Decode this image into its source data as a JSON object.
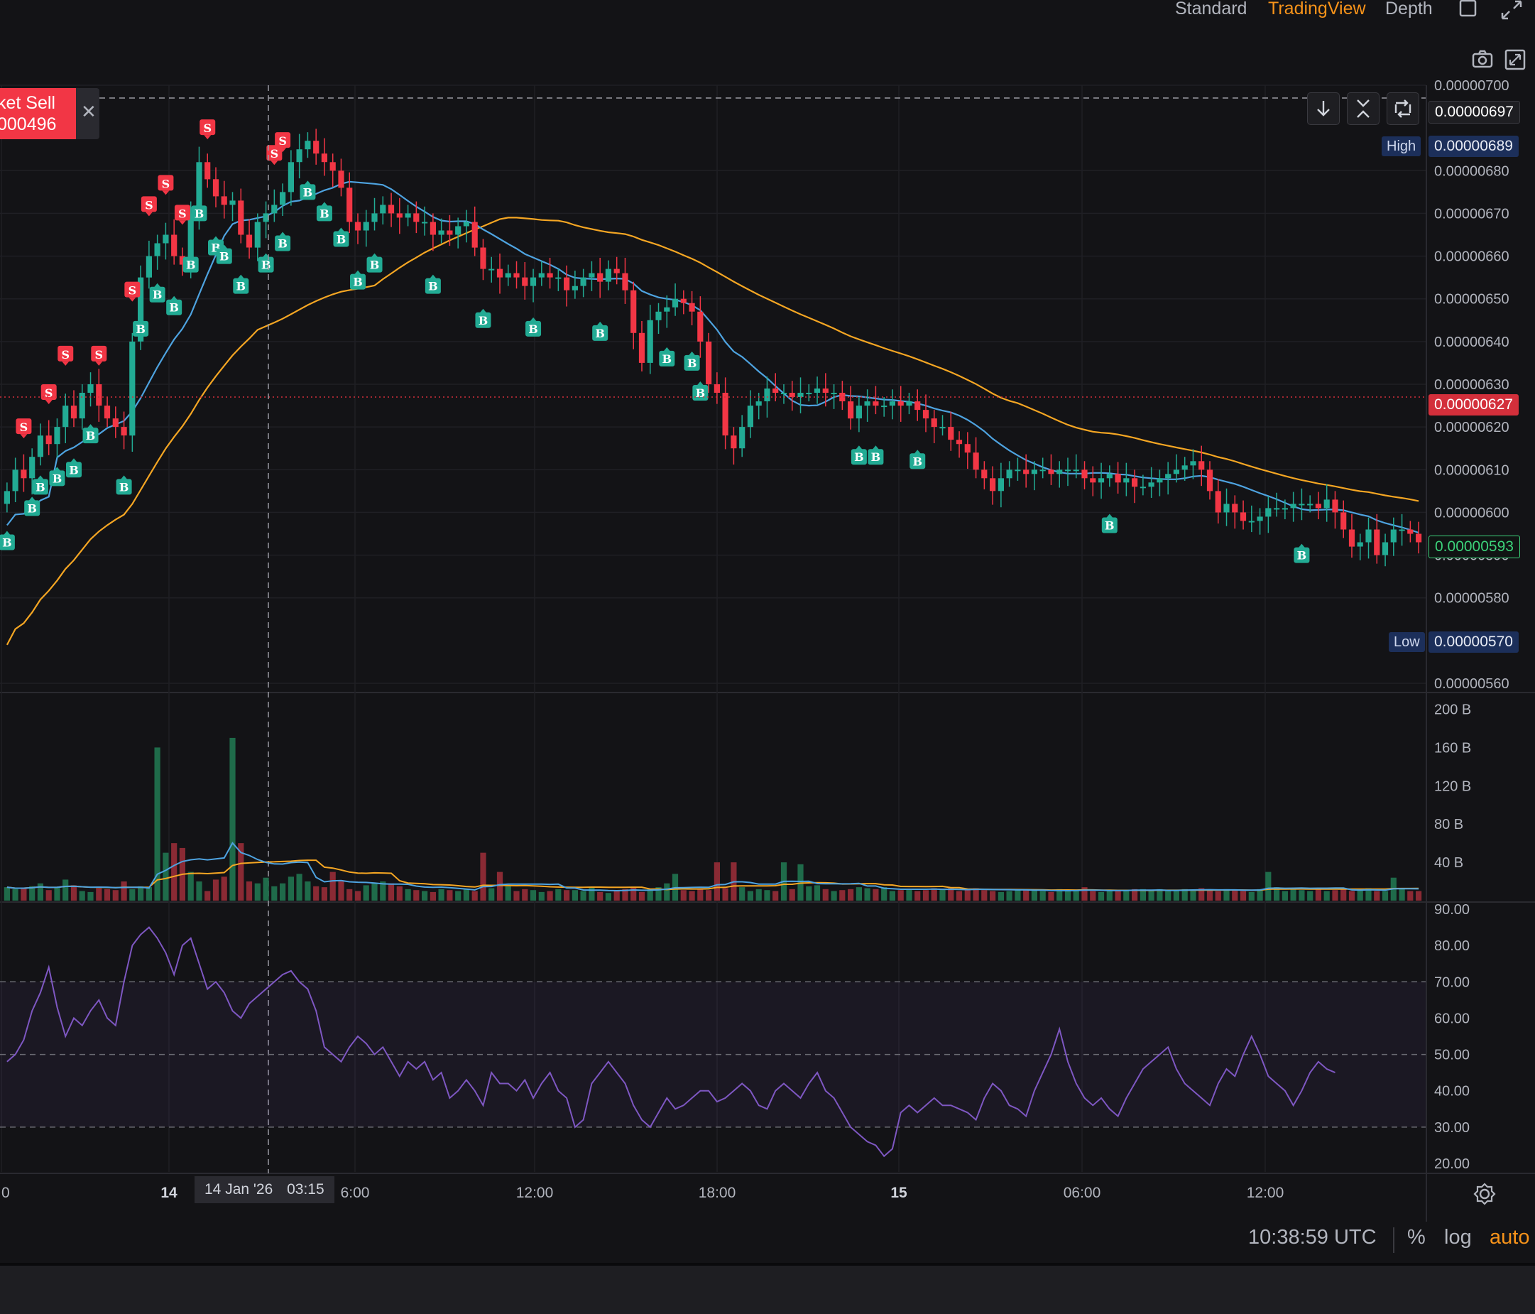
{
  "toolbar": {
    "views": [
      "Standard",
      "TradingView",
      "Depth"
    ],
    "active_view": "TradingView"
  },
  "tooltip": {
    "line1": "ket Sell",
    "line2": "000496"
  },
  "price_tags": {
    "crosshair": "0.00000697",
    "high_label": "High",
    "high": "0.00000689",
    "last": "0.00000627",
    "current": "0.00000593",
    "low_label": "Low",
    "low": "0.00000570"
  },
  "crosshair_time": {
    "date": "14 Jan '26",
    "time": "03:15"
  },
  "bottom_bar": {
    "clock": "10:38:59 UTC",
    "percent": "%",
    "log": "log",
    "auto": "auto"
  },
  "colors": {
    "up": "#22ab94",
    "down": "#f23645",
    "ma_fast": "#4ea3e0",
    "ma_slow": "#f5a623",
    "rsi": "#7e57c2",
    "accent": "#f7931a"
  },
  "chart_data": [
    {
      "type": "candlestick",
      "series": [
        {
          "name": "price",
          "close": [
            6.05,
            6.1,
            6.08,
            6.13,
            6.18,
            6.16,
            6.2,
            6.25,
            6.22,
            6.28,
            6.3,
            6.25,
            6.22,
            6.2,
            6.18,
            6.4,
            6.55,
            6.6,
            6.63,
            6.65,
            6.6,
            6.58,
            6.7,
            6.82,
            6.78,
            6.74,
            6.72,
            6.73,
            6.65,
            6.62,
            6.68,
            6.7,
            6.72,
            6.75,
            6.82,
            6.85,
            6.87,
            6.84,
            6.82,
            6.8,
            6.76,
            6.68,
            6.66,
            6.68,
            6.7,
            6.72,
            6.7,
            6.69,
            6.7,
            6.68,
            6.68,
            6.65,
            6.66,
            6.65,
            6.67,
            6.68,
            6.62,
            6.57,
            6.57,
            6.55,
            6.56,
            6.55,
            6.53,
            6.55,
            6.56,
            6.55,
            6.55,
            6.52,
            6.53,
            6.55,
            6.56,
            6.54,
            6.57,
            6.56,
            6.52,
            6.42,
            6.35,
            6.45,
            6.47,
            6.48,
            6.5,
            6.49,
            6.47,
            6.4,
            6.3,
            6.28,
            6.18,
            6.15,
            6.2,
            6.25,
            6.26,
            6.29,
            6.28,
            6.28,
            6.27,
            6.28,
            6.28,
            6.29,
            6.28,
            6.28,
            6.26,
            6.22,
            6.25,
            6.26,
            6.25,
            6.25,
            6.26,
            6.25,
            6.26,
            6.24,
            6.22,
            6.2,
            6.2,
            6.17,
            6.16,
            6.14,
            6.1,
            6.08,
            6.05,
            6.08,
            6.1,
            6.1,
            6.09,
            6.1,
            6.1,
            6.09,
            6.1,
            6.1,
            6.1,
            6.08,
            6.07,
            6.08,
            6.09,
            6.07,
            6.08,
            6.06,
            6.06,
            6.07,
            6.08,
            6.09,
            6.1,
            6.11,
            6.12,
            6.1,
            6.05,
            6.0,
            6.02,
            6.0,
            5.98,
            5.98,
            5.99,
            6.01,
            6.01,
            6.01,
            6.02,
            6.02,
            6.02,
            6.01,
            6.03,
            6.0,
            5.96,
            5.92,
            5.93,
            5.96,
            5.9,
            5.93,
            5.96,
            5.96,
            5.95,
            5.93
          ]
        }
      ],
      "x_ticks": [
        "0",
        "14",
        "6:00",
        "12:00",
        "18:00",
        "15",
        "06:00",
        "12:00"
      ],
      "y_ticks": [
        "0.00000700",
        "0.00000680",
        "0.00000670",
        "0.00000660",
        "0.00000650",
        "0.00000640",
        "0.00000630",
        "0.00000620",
        "0.00000610",
        "0.00000600",
        "0.00000590",
        "0.00000580",
        "0.00000560"
      ],
      "ylim": [
        5.6,
        7.0
      ],
      "high": 6.89,
      "low": 5.7,
      "markers_sell": [
        2,
        5,
        7,
        11,
        15,
        17,
        19,
        21,
        24,
        32,
        33
      ],
      "markers_buy": [
        0,
        3,
        4,
        6,
        8,
        10,
        14,
        16,
        18,
        20,
        22,
        23,
        25,
        26,
        28,
        31,
        33,
        36,
        38,
        40,
        42,
        44,
        51,
        57,
        63,
        71,
        79,
        82,
        83,
        102,
        104,
        109,
        132,
        155
      ],
      "grid": true
    },
    {
      "type": "bar",
      "series": [
        {
          "name": "volume",
          "values": [
            14,
            12,
            13,
            15,
            18,
            11,
            14,
            22,
            16,
            10,
            9,
            13,
            12,
            11,
            20,
            12,
            15,
            14,
            160,
            50,
            60,
            55,
            30,
            20,
            10,
            22,
            25,
            170,
            60,
            20,
            18,
            24,
            15,
            18,
            25,
            28,
            20,
            15,
            14,
            30,
            20,
            12,
            10,
            16,
            18,
            20,
            18,
            15,
            12,
            11,
            10,
            9,
            12,
            11,
            10,
            12,
            10,
            50,
            13,
            30,
            15,
            10,
            12,
            11,
            9,
            10,
            12,
            11,
            11,
            10,
            14,
            9,
            8,
            10,
            12,
            14,
            9,
            12,
            14,
            18,
            28,
            11,
            10,
            12,
            11,
            40,
            13,
            40,
            14,
            10,
            12,
            11,
            10,
            40,
            12,
            38,
            15,
            16,
            12,
            10,
            11,
            12,
            14,
            13,
            12,
            14,
            10,
            11,
            12,
            10,
            11,
            13,
            12,
            14,
            10,
            12,
            13,
            11,
            10,
            9,
            10,
            11,
            12,
            11,
            10,
            9,
            12,
            10,
            11,
            14,
            10,
            9,
            10,
            11,
            10,
            12,
            12,
            11,
            12,
            10,
            10,
            12,
            11,
            13,
            11,
            10,
            12,
            11,
            10,
            9,
            12,
            30,
            14,
            10,
            12,
            11,
            10,
            12,
            10,
            11,
            12,
            10,
            12,
            13,
            10,
            10,
            24,
            12,
            10,
            10,
            10,
            11,
            10,
            9,
            10
          ]
        }
      ],
      "y_ticks": [
        "200 B",
        "160 B",
        "120 B",
        "80 B",
        "40 B"
      ],
      "ylim": [
        0,
        210
      ]
    },
    {
      "type": "line",
      "series": [
        {
          "name": "rsi",
          "values": [
            48,
            50,
            54,
            62,
            67,
            74,
            63,
            55,
            60,
            58,
            62,
            65,
            60,
            58,
            70,
            80,
            83,
            85,
            82,
            78,
            72,
            80,
            82,
            75,
            68,
            70,
            67,
            62,
            60,
            64,
            66,
            68,
            70,
            72,
            73,
            70,
            68,
            62,
            52,
            50,
            48,
            52,
            55,
            53,
            50,
            52,
            48,
            44,
            48,
            46,
            48,
            43,
            45,
            38,
            40,
            43,
            40,
            36,
            45,
            42,
            42,
            40,
            43,
            38,
            42,
            45,
            40,
            38,
            30,
            32,
            42,
            45,
            48,
            45,
            42,
            36,
            32,
            30,
            34,
            38,
            35,
            36,
            38,
            40,
            40,
            37,
            38,
            40,
            42,
            40,
            36,
            35,
            40,
            42,
            40,
            38,
            42,
            45,
            40,
            38,
            34,
            30,
            28,
            26,
            25,
            22,
            24,
            34,
            36,
            34,
            36,
            38,
            36,
            36,
            35,
            34,
            32,
            38,
            42,
            40,
            36,
            35,
            33,
            40,
            45,
            50,
            57,
            48,
            42,
            38,
            36,
            38,
            35,
            33,
            38,
            42,
            46,
            48,
            50,
            52,
            46,
            42,
            40,
            38,
            36,
            42,
            46,
            44,
            50,
            55,
            50,
            44,
            42,
            40,
            36,
            40,
            45,
            48,
            46,
            45
          ]
        }
      ],
      "y_ticks": [
        "90.00",
        "80.00",
        "70.00",
        "60.00",
        "50.00",
        "40.00",
        "30.00",
        "20.00"
      ],
      "ylim": [
        20,
        90
      ],
      "levels": [
        70,
        50,
        30
      ]
    }
  ]
}
